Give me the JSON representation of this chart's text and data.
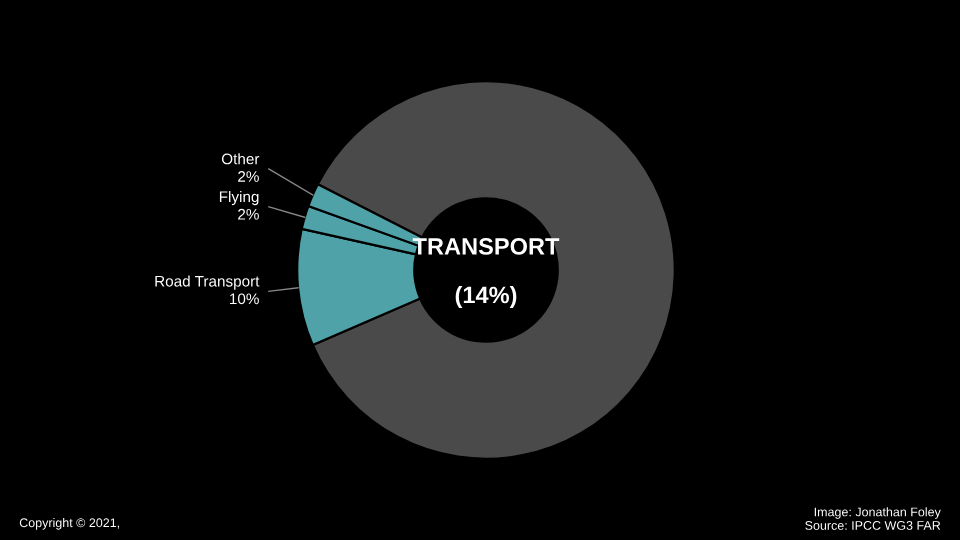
{
  "chart_data": {
    "type": "donut",
    "categories": [
      null,
      "Road Transport",
      "Flying",
      "Other"
    ],
    "values": [
      86,
      10,
      2,
      2
    ],
    "value_labels": [
      null,
      "10%",
      "2%",
      "2%"
    ],
    "colors": [
      "#4a4a4a",
      "#4fa3a8",
      "#4fa3a8",
      "#4fa3a8"
    ],
    "legend": false,
    "annotations": [
      "TRANSPORT",
      "(14%)",
      "Copyright © 2021,",
      "Image: Jonathan Foley",
      "Source: IPCC WG3 FAR"
    ]
  }
}
